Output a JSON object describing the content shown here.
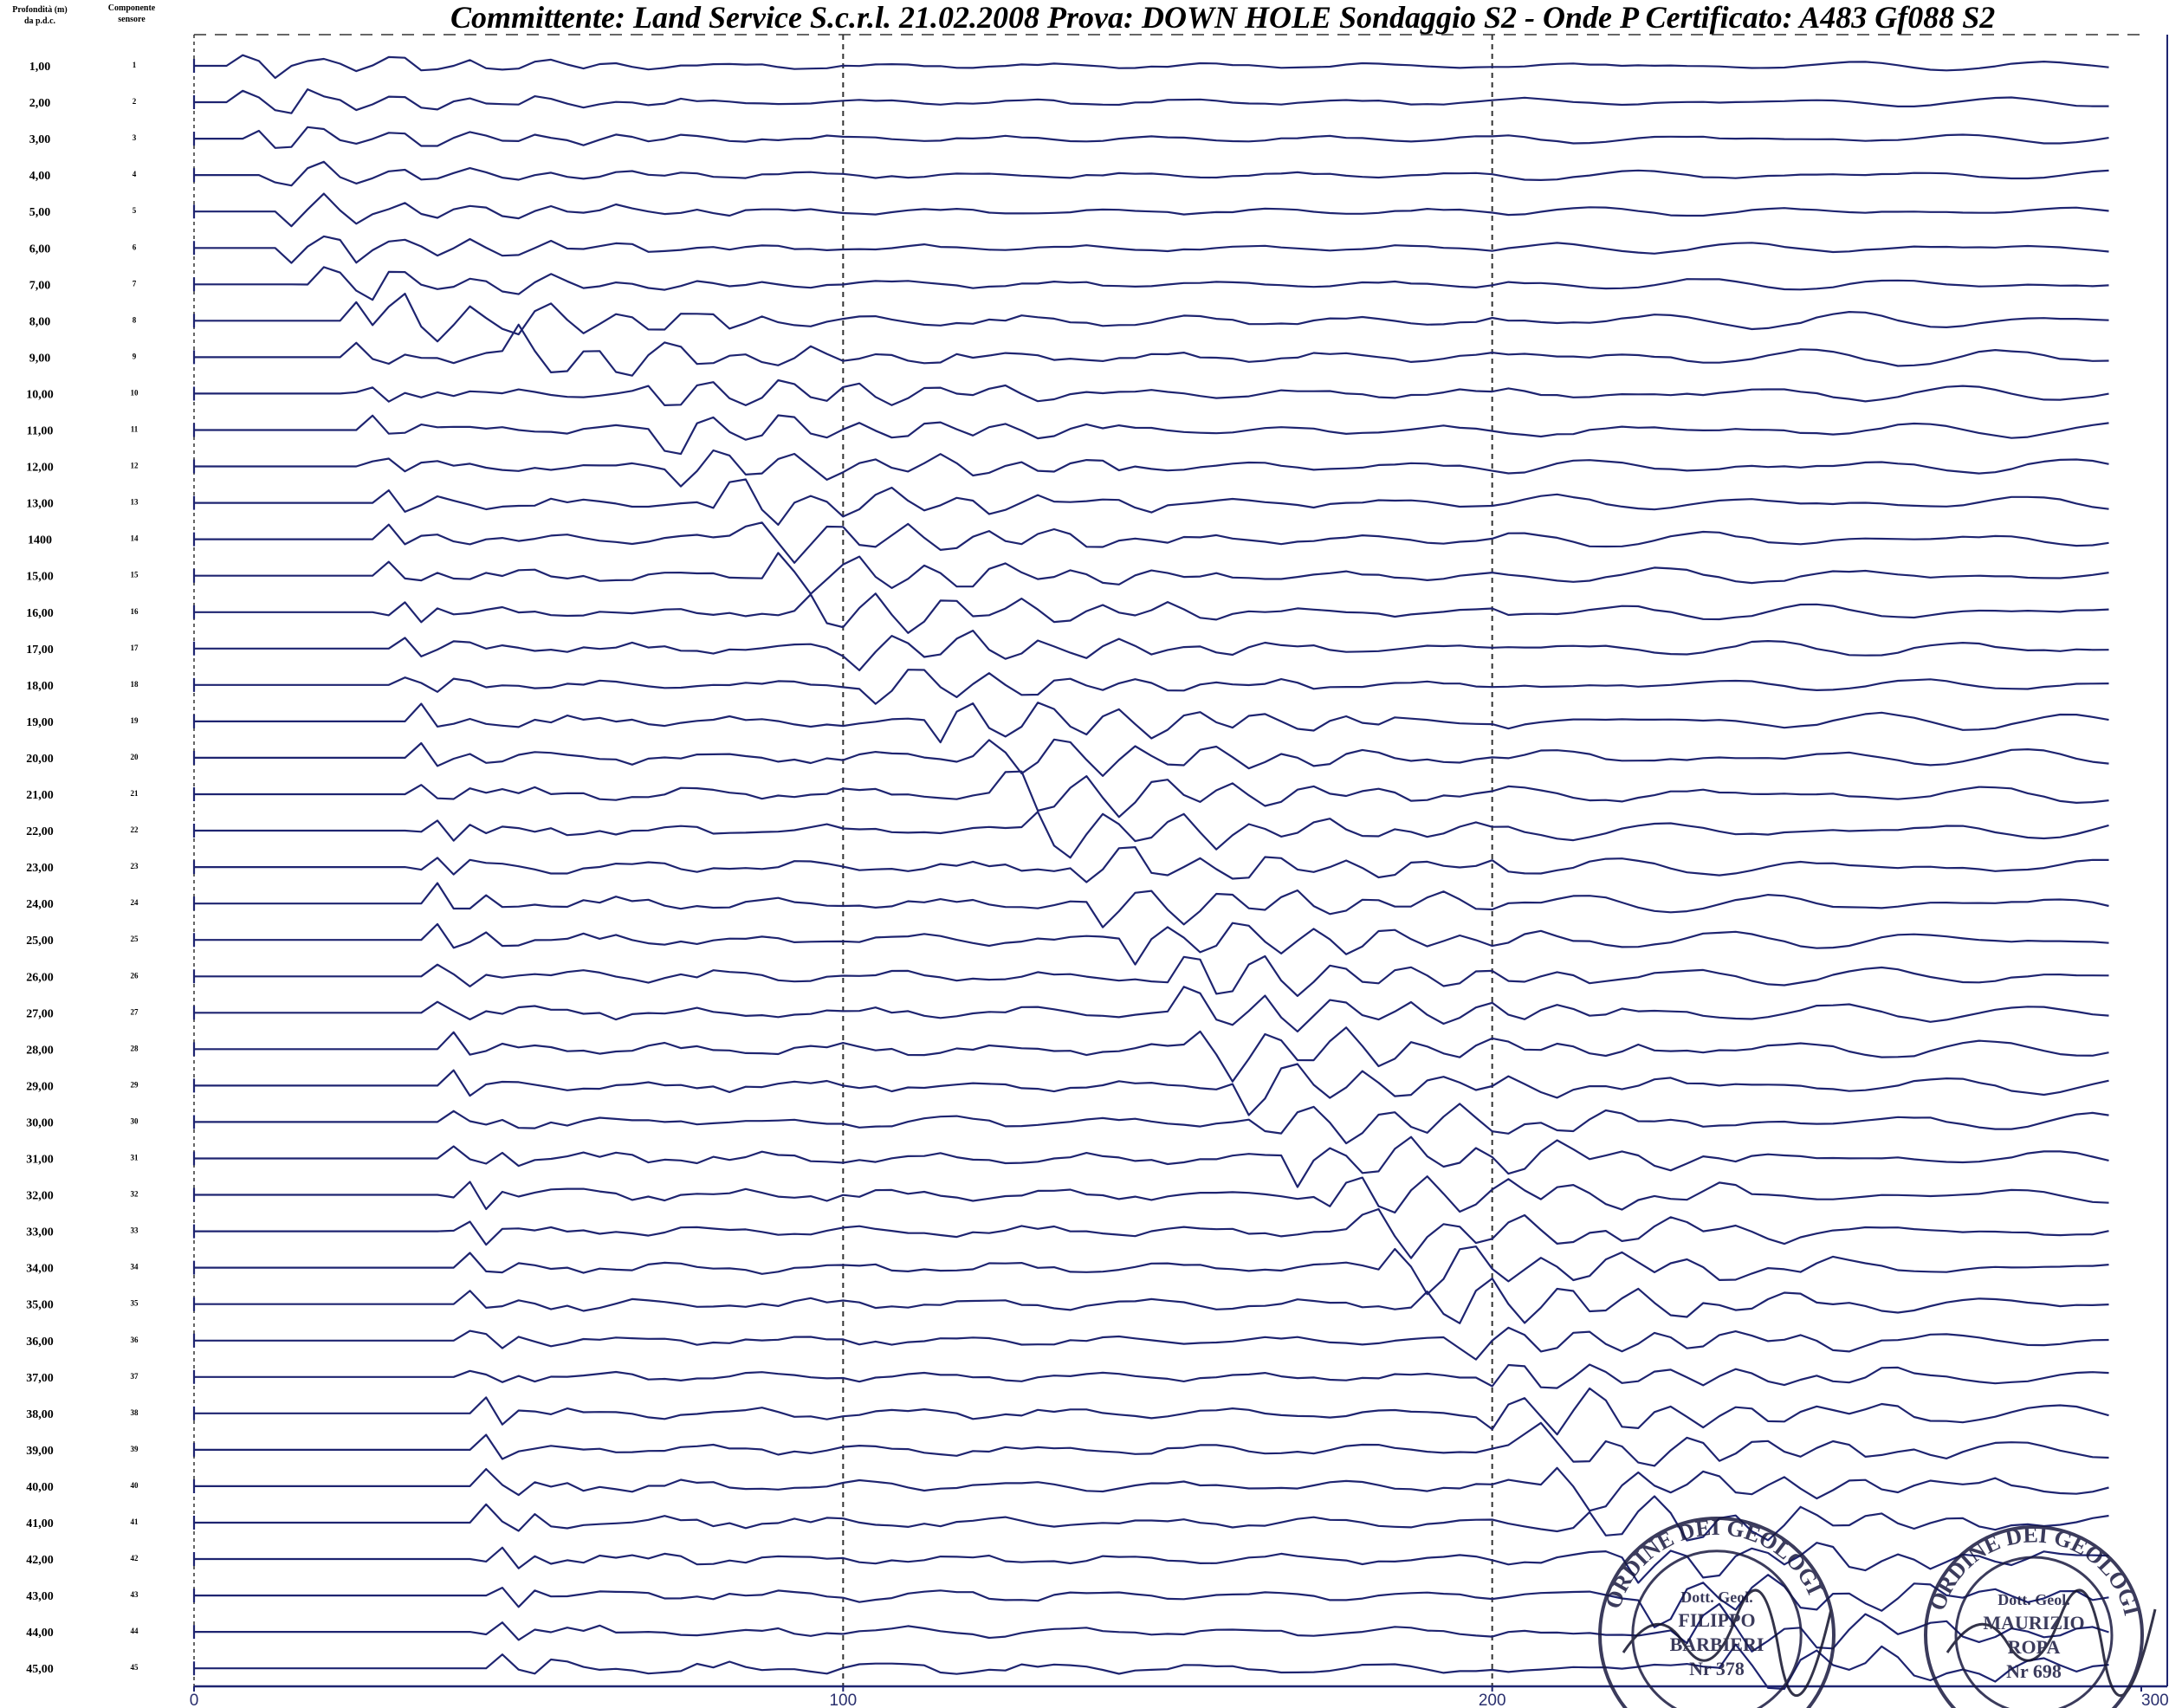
{
  "title": "Committente: Land Service  S.c.r.l.  21.02.2008 Prova: DOWN HOLE Sondaggio S2 - Onde P  Certificato: A483 Gf088 S2",
  "headers": {
    "depth_line1": "Profondità (m)",
    "depth_line2": "da p.d.c.",
    "sensor_line1": "Componente",
    "sensor_line2": "sensore"
  },
  "colors": {
    "trace": "#1e2470",
    "axis": "#1e2470",
    "gridline": "#333333",
    "text": "#000000"
  },
  "chart_data": {
    "type": "line",
    "xlim": [
      0,
      300
    ],
    "x_ticks": [
      0,
      100,
      200,
      300
    ],
    "x_tick_labels": [
      "0",
      "100",
      "200",
      "300"
    ],
    "dashed_gridlines_x": [
      100,
      200
    ],
    "depth_labels": [
      "1,00",
      "2,00",
      "3,00",
      "4,00",
      "5,00",
      "6,00",
      "7,00",
      "8,00",
      "9,00",
      "10,00",
      "11,00",
      "12,00",
      "13,00",
      "1400",
      "15,00",
      "16,00",
      "17,00",
      "18,00",
      "19,00",
      "20,00",
      "21,00",
      "22,00",
      "23,00",
      "24,00",
      "25,00",
      "26,00",
      "27,00",
      "28,00",
      "29,00",
      "30,00",
      "31,00",
      "32,00",
      "33,00",
      "34,00",
      "35,00",
      "36,00",
      "37,00",
      "38,00",
      "39,00",
      "40,00",
      "41,00",
      "42,00",
      "43,00",
      "44,00",
      "45,00"
    ],
    "sensor_labels": [
      "1",
      "2",
      "3",
      "4",
      "5",
      "6",
      "7",
      "8",
      "9",
      "10",
      "11",
      "12",
      "13",
      "14",
      "15",
      "16",
      "17",
      "18",
      "19",
      "20",
      "21",
      "22",
      "23",
      "24",
      "25",
      "26",
      "27",
      "28",
      "29",
      "30",
      "31",
      "32",
      "33",
      "34",
      "35",
      "36",
      "37",
      "38",
      "39",
      "40",
      "41",
      "42",
      "43",
      "44",
      "45"
    ],
    "first_arrival_x": [
      14,
      15,
      16,
      17,
      19,
      20,
      22,
      23,
      24,
      25,
      26,
      27,
      28,
      28,
      29,
      30,
      31,
      32,
      33,
      33,
      34,
      35,
      35,
      36,
      36,
      37,
      37,
      38,
      38,
      39,
      39,
      40,
      40,
      41,
      41,
      42,
      42,
      43,
      43,
      44,
      44,
      45,
      45,
      45,
      46
    ],
    "burst_start_x": [
      5,
      7,
      9,
      11,
      13,
      15,
      17,
      30,
      50,
      70,
      72,
      75,
      80,
      85,
      90,
      95,
      100,
      105,
      115,
      120,
      125,
      130,
      135,
      140,
      145,
      150,
      152,
      155,
      160,
      165,
      170,
      175,
      180,
      185,
      190,
      195,
      198,
      200,
      205,
      210,
      215,
      220,
      225,
      230,
      235
    ],
    "amplitude": [
      0.5,
      0.5,
      0.5,
      0.5,
      0.5,
      0.6,
      0.6,
      0.9,
      0.9,
      0.8,
      0.8,
      0.8,
      0.8,
      0.8,
      0.8,
      0.8,
      0.8,
      0.6,
      0.9,
      0.9,
      0.9,
      0.9,
      0.9,
      0.9,
      0.9,
      0.9,
      0.9,
      0.9,
      0.9,
      0.9,
      0.9,
      0.9,
      0.9,
      0.9,
      0.9,
      0.7,
      0.7,
      0.9,
      0.9,
      0.9,
      0.9,
      0.9,
      0.9,
      0.9,
      0.9
    ]
  },
  "stamps": [
    {
      "org": "ORDINE DEI GEOLOGI",
      "title": "Dott. Geol.",
      "name1": "FILIPPO",
      "name2": "BARBIERI",
      "number": "Nr 378"
    },
    {
      "org": "ORDINE DEI GEOLOGI",
      "title": "Dott. Geol.",
      "name1": "MAURIZIO",
      "name2": "ROPA",
      "number": "Nr 698"
    }
  ]
}
